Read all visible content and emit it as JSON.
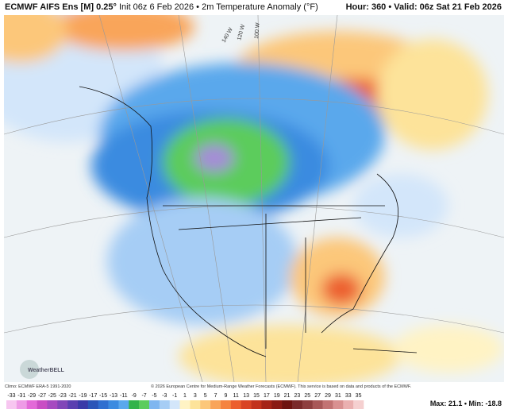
{
  "header": {
    "model": "ECMWF AIFS Ens [M] 0.25°",
    "init": "Init 06z 6 Feb 2026 • 2m Temperature Anomaly (°F)",
    "valid": "Hour: 360 • Valid: 06z Sat 21 Feb 2026"
  },
  "map": {
    "longitude_labels": [
      "140 W",
      "120 W",
      "100 W"
    ],
    "logo": "WeatherBELL"
  },
  "footer": {
    "climo": "Climo: ECMWF ERA-5 1991-2020",
    "copyright": "© 2026 European Centre for Medium-Range Weather Forecasts (ECMWF). This service is based on data and products of the ECMWF.",
    "maxmin": "Max: 21.1 • Min: -18.8"
  },
  "legend": {
    "ticks": [
      -33,
      -31,
      -29,
      -27,
      -25,
      -23,
      -21,
      -19,
      -17,
      -15,
      -13,
      -11,
      -9,
      -7,
      -5,
      -3,
      -1,
      1,
      3,
      5,
      7,
      9,
      11,
      13,
      15,
      17,
      19,
      21,
      23,
      25,
      27,
      29,
      31,
      33,
      35
    ],
    "colors": [
      "#f7c6f0",
      "#ee9be6",
      "#e36ad8",
      "#c94dc4",
      "#a64ac0",
      "#8146b8",
      "#5a3fb0",
      "#3a3aa8",
      "#2a55b8",
      "#2f6fd0",
      "#3b8be0",
      "#5aa8ec",
      "#33b34a",
      "#5ccc5c",
      "#7fb6f0",
      "#a6cdf5",
      "#d3e6fa",
      "#fff3c4",
      "#fde39a",
      "#fcc77a",
      "#f9a55a",
      "#f5833f",
      "#ec5f2d",
      "#d94423",
      "#c2321c",
      "#a52417",
      "#8a1b14",
      "#6e1410",
      "#7a2a2a",
      "#8e3f3f",
      "#a85858",
      "#c27373",
      "#d99191",
      "#eab0b0",
      "#f5d0d0"
    ]
  }
}
